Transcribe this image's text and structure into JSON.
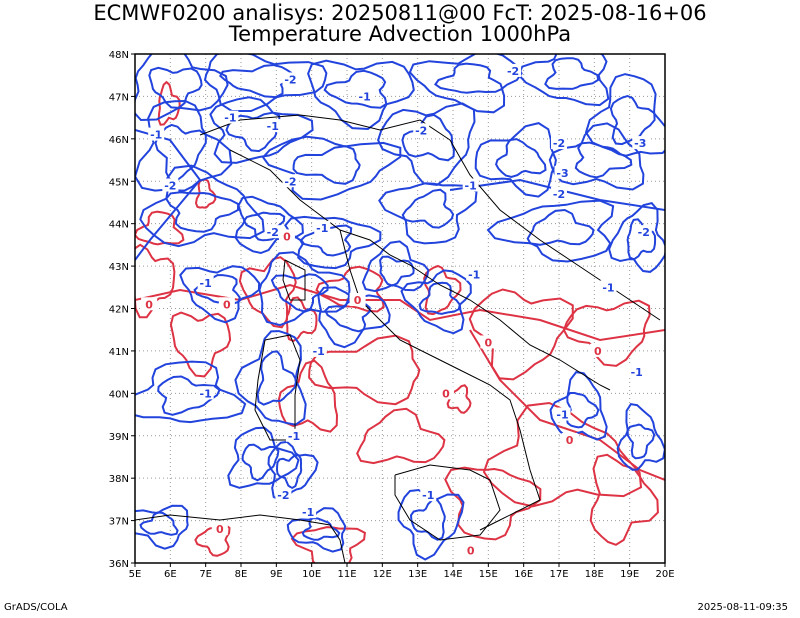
{
  "header": {
    "line1": "ECMWF0200 analisys: 20250811@00 FcT: 2025-08-16+06",
    "line2": "Temperature Advection 1000hPa"
  },
  "footer": {
    "left": "GrADS/COLA",
    "right": "2025-08-11-09:35"
  },
  "map": {
    "lon_range": [
      5,
      20
    ],
    "lat_range": [
      36,
      48
    ],
    "lon_ticks": [
      "5E",
      "6E",
      "7E",
      "8E",
      "9E",
      "10E",
      "11E",
      "12E",
      "13E",
      "14E",
      "15E",
      "16E",
      "17E",
      "18E",
      "19E",
      "20E"
    ],
    "lat_ticks": [
      "36N",
      "37N",
      "38N",
      "39N",
      "40N",
      "41N",
      "42N",
      "43N",
      "44N",
      "45N",
      "46N",
      "47N",
      "48N"
    ],
    "grid": "dotted",
    "colors": {
      "negative": "#2244dd",
      "positive": "#dd3344",
      "coast": "#000000"
    },
    "contour_labels": [
      {
        "text": "-2",
        "lon": 9.4,
        "lat": 47.4,
        "sign": "neg"
      },
      {
        "text": "-2",
        "lon": 15.7,
        "lat": 47.6,
        "sign": "neg"
      },
      {
        "text": "-1",
        "lon": 11.5,
        "lat": 47.0,
        "sign": "neg"
      },
      {
        "text": "-1",
        "lon": 5.6,
        "lat": 46.1,
        "sign": "neg"
      },
      {
        "text": "-1",
        "lon": 7.7,
        "lat": 46.5,
        "sign": "neg"
      },
      {
        "text": "-1",
        "lon": 8.9,
        "lat": 46.3,
        "sign": "neg"
      },
      {
        "text": "-2",
        "lon": 13.1,
        "lat": 46.2,
        "sign": "neg"
      },
      {
        "text": "-2",
        "lon": 17.0,
        "lat": 45.9,
        "sign": "neg"
      },
      {
        "text": "-3",
        "lon": 17.1,
        "lat": 45.2,
        "sign": "neg"
      },
      {
        "text": "-3",
        "lon": 19.3,
        "lat": 45.9,
        "sign": "neg"
      },
      {
        "text": "-2",
        "lon": 17.0,
        "lat": 44.7,
        "sign": "neg"
      },
      {
        "text": "-1",
        "lon": 14.5,
        "lat": 44.9,
        "sign": "neg"
      },
      {
        "text": "-2",
        "lon": 6.0,
        "lat": 44.9,
        "sign": "neg"
      },
      {
        "text": "-2",
        "lon": 9.4,
        "lat": 45.0,
        "sign": "neg"
      },
      {
        "text": "-1",
        "lon": 10.3,
        "lat": 43.9,
        "sign": "neg"
      },
      {
        "text": "-2",
        "lon": 8.9,
        "lat": 43.8,
        "sign": "neg"
      },
      {
        "text": "-2",
        "lon": 19.4,
        "lat": 43.8,
        "sign": "neg"
      },
      {
        "text": "-1",
        "lon": 14.6,
        "lat": 42.8,
        "sign": "neg"
      },
      {
        "text": "-1",
        "lon": 7.0,
        "lat": 42.6,
        "sign": "neg"
      },
      {
        "text": "-1",
        "lon": 10.2,
        "lat": 41.0,
        "sign": "neg"
      },
      {
        "text": "-1",
        "lon": 7.0,
        "lat": 40.0,
        "sign": "neg"
      },
      {
        "text": "-1",
        "lon": 9.5,
        "lat": 39.0,
        "sign": "neg"
      },
      {
        "text": "-2",
        "lon": 9.2,
        "lat": 37.6,
        "sign": "neg"
      },
      {
        "text": "-1",
        "lon": 9.9,
        "lat": 37.2,
        "sign": "neg"
      },
      {
        "text": "-1",
        "lon": 13.3,
        "lat": 37.6,
        "sign": "neg"
      },
      {
        "text": "-1",
        "lon": 17.1,
        "lat": 39.5,
        "sign": "neg"
      },
      {
        "text": "-1",
        "lon": 19.2,
        "lat": 40.5,
        "sign": "neg"
      },
      {
        "text": "-1",
        "lon": 18.4,
        "lat": 42.5,
        "sign": "neg"
      },
      {
        "text": "0",
        "lon": 7.6,
        "lat": 42.1,
        "sign": "pos"
      },
      {
        "text": "0",
        "lon": 9.3,
        "lat": 43.7,
        "sign": "pos"
      },
      {
        "text": "0",
        "lon": 11.3,
        "lat": 42.2,
        "sign": "pos"
      },
      {
        "text": "0",
        "lon": 5.4,
        "lat": 42.1,
        "sign": "pos"
      },
      {
        "text": "0",
        "lon": 15.0,
        "lat": 41.2,
        "sign": "pos"
      },
      {
        "text": "0",
        "lon": 13.8,
        "lat": 40.0,
        "sign": "pos"
      },
      {
        "text": "0",
        "lon": 17.3,
        "lat": 38.9,
        "sign": "pos"
      },
      {
        "text": "0",
        "lon": 18.1,
        "lat": 41.0,
        "sign": "pos"
      },
      {
        "text": "0",
        "lon": 14.5,
        "lat": 36.3,
        "sign": "pos"
      },
      {
        "text": "0",
        "lon": 7.4,
        "lat": 36.8,
        "sign": "pos"
      }
    ]
  }
}
